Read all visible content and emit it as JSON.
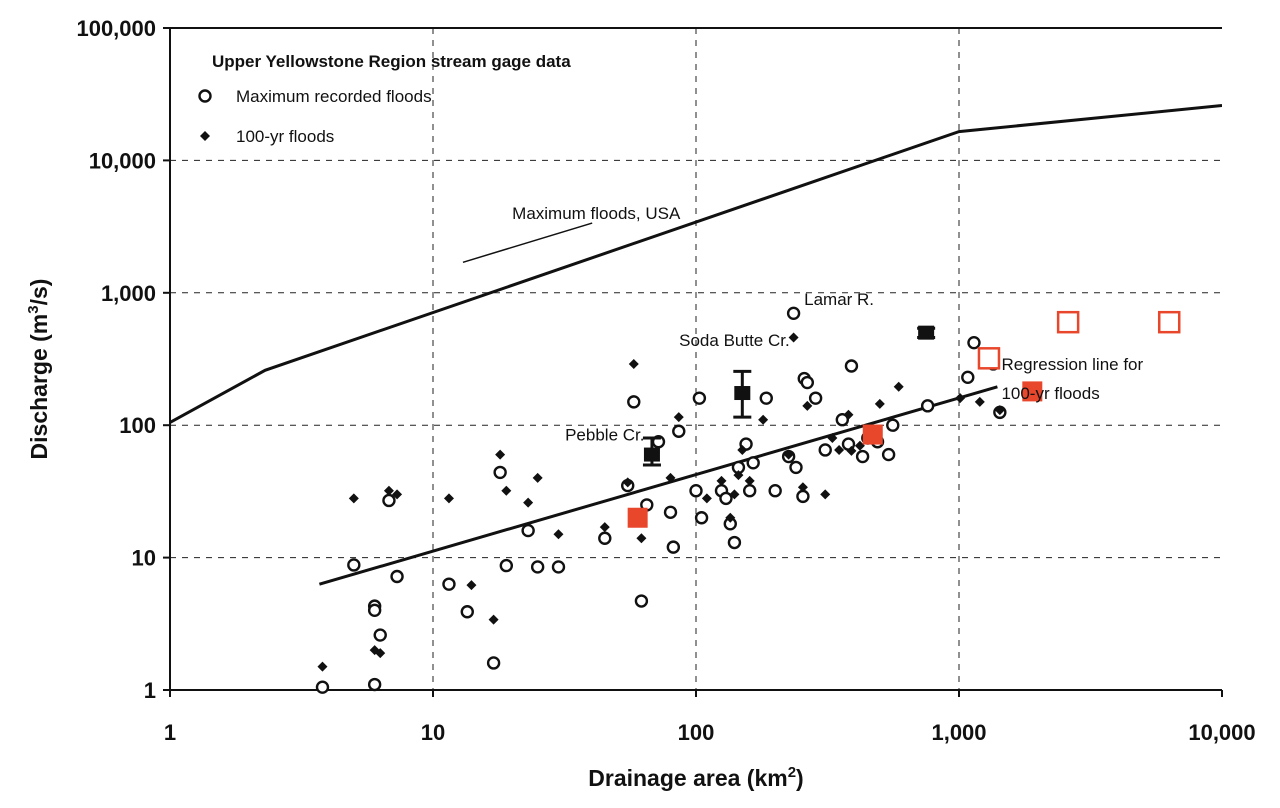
{
  "chart_data": {
    "type": "scatter",
    "xscale": "log",
    "yscale": "log",
    "xlim": [
      1,
      10000
    ],
    "ylim": [
      1,
      100000
    ],
    "grid": true,
    "xlabel": "Drainage area (km",
    "xlabel_sup": "2",
    "xlabel_end": ")",
    "ylabel": "Discharge (m",
    "ylabel_sup": "3",
    "ylabel_end": "/s)",
    "x_ticks": [
      {
        "value": 1,
        "label": "1"
      },
      {
        "value": 10,
        "label": "10"
      },
      {
        "value": 100,
        "label": "100"
      },
      {
        "value": 1000,
        "label": "1,000"
      },
      {
        "value": 10000,
        "label": "10,000"
      }
    ],
    "y_ticks": [
      {
        "value": 1,
        "label": "1"
      },
      {
        "value": 10,
        "label": "10"
      },
      {
        "value": 100,
        "label": "100"
      },
      {
        "value": 1000,
        "label": "1,000"
      },
      {
        "value": 10000,
        "label": "10,000"
      },
      {
        "value": 100000,
        "label": "100,000"
      }
    ],
    "legend": {
      "title": "Upper Yellowstone Region stream gage data",
      "placement": "top-left",
      "entries": [
        {
          "label": "Maximum recorded floods",
          "marker": "open-circle"
        },
        {
          "label": "100-yr floods",
          "marker": "filled-diamond"
        }
      ]
    },
    "series": [
      {
        "name": "Maximum recorded floods",
        "marker": "open-circle",
        "points": [
          [
            3.8,
            1.05
          ],
          [
            5,
            8.8
          ],
          [
            6,
            4.3
          ],
          [
            6,
            4
          ],
          [
            6,
            1.1
          ],
          [
            6.3,
            2.6
          ],
          [
            6.8,
            27
          ],
          [
            7.3,
            7.2
          ],
          [
            11.5,
            6.3
          ],
          [
            13.5,
            3.9
          ],
          [
            17,
            1.6
          ],
          [
            18,
            44
          ],
          [
            19,
            8.7
          ],
          [
            23,
            16
          ],
          [
            25,
            8.5
          ],
          [
            30,
            8.5
          ],
          [
            45,
            14
          ],
          [
            55,
            35
          ],
          [
            58,
            150
          ],
          [
            62,
            4.7
          ],
          [
            65,
            25
          ],
          [
            72,
            75
          ],
          [
            80,
            22
          ],
          [
            82,
            12
          ],
          [
            86,
            90
          ],
          [
            100,
            32
          ],
          [
            103,
            160
          ],
          [
            105,
            20
          ],
          [
            125,
            32
          ],
          [
            130,
            28
          ],
          [
            135,
            18
          ],
          [
            140,
            13
          ],
          [
            145,
            48
          ],
          [
            155,
            72
          ],
          [
            160,
            32
          ],
          [
            165,
            52
          ],
          [
            185,
            160
          ],
          [
            200,
            32
          ],
          [
            225,
            58
          ],
          [
            235,
            700
          ],
          [
            240,
            48
          ],
          [
            255,
            29
          ],
          [
            258,
            225
          ],
          [
            265,
            210
          ],
          [
            285,
            160
          ],
          [
            310,
            65
          ],
          [
            360,
            110
          ],
          [
            380,
            72
          ],
          [
            390,
            280
          ],
          [
            430,
            58
          ],
          [
            450,
            80
          ],
          [
            490,
            75
          ],
          [
            540,
            60
          ],
          [
            560,
            100
          ],
          [
            760,
            140
          ],
          [
            1080,
            230
          ],
          [
            1140,
            420
          ],
          [
            1350,
            290
          ],
          [
            1430,
            125
          ]
        ]
      },
      {
        "name": "100-yr floods",
        "marker": "filled-diamond",
        "points": [
          [
            3.8,
            1.5
          ],
          [
            5,
            28
          ],
          [
            6,
            2
          ],
          [
            6.3,
            1.9
          ],
          [
            6.8,
            32
          ],
          [
            7.3,
            30
          ],
          [
            11.5,
            28
          ],
          [
            14,
            6.2
          ],
          [
            17,
            3.4
          ],
          [
            18,
            60
          ],
          [
            19,
            32
          ],
          [
            23,
            26
          ],
          [
            25,
            40
          ],
          [
            30,
            15
          ],
          [
            45,
            17
          ],
          [
            55,
            37
          ],
          [
            58,
            290
          ],
          [
            62,
            14
          ],
          [
            80,
            40
          ],
          [
            86,
            115
          ],
          [
            110,
            28
          ],
          [
            125,
            38
          ],
          [
            135,
            20
          ],
          [
            140,
            30
          ],
          [
            145,
            42
          ],
          [
            150,
            65
          ],
          [
            160,
            38
          ],
          [
            180,
            110
          ],
          [
            225,
            60
          ],
          [
            235,
            460
          ],
          [
            255,
            34
          ],
          [
            265,
            140
          ],
          [
            310,
            30
          ],
          [
            330,
            80
          ],
          [
            350,
            65
          ],
          [
            380,
            120
          ],
          [
            390,
            64
          ],
          [
            420,
            70
          ],
          [
            500,
            145
          ],
          [
            590,
            195
          ],
          [
            1010,
            160
          ],
          [
            1200,
            150
          ],
          [
            1430,
            130
          ]
        ]
      },
      {
        "name": "",
        "marker": "filled-square-red",
        "points": [
          [
            60,
            20
          ],
          [
            470,
            85
          ],
          [
            1900,
            180
          ]
        ]
      },
      {
        "name": "",
        "marker": "open-square-red",
        "points": [
          [
            1300,
            320
          ],
          [
            2600,
            600
          ],
          [
            6300,
            600
          ]
        ]
      },
      {
        "name": "",
        "marker": "error-bar",
        "points": [
          {
            "x": 68,
            "y": 60,
            "low": 50,
            "high": 80
          },
          {
            "x": 150,
            "y": 175,
            "low": 115,
            "high": 255
          },
          {
            "x": 750,
            "y": 500,
            "low": 460,
            "high": 540
          }
        ]
      }
    ],
    "lines": [
      {
        "label": "Maximum floods, USA",
        "points": [
          [
            1,
            105
          ],
          [
            2.3,
            260
          ],
          [
            1000,
            16500
          ],
          [
            10000,
            26000
          ]
        ]
      },
      {
        "label": "Regression line for 100-yr floods",
        "points": [
          [
            3.7,
            6.3
          ],
          [
            1400,
            195
          ]
        ]
      }
    ],
    "annotations": [
      {
        "text": "Maximum floods, USA",
        "x": 20,
        "y": 4000,
        "anchor": "start",
        "leader_to": [
          13,
          1700
        ]
      },
      {
        "text": "Lamar R.",
        "x": 350,
        "y": 900,
        "anchor": "middle"
      },
      {
        "text": "Soda Butte Cr.",
        "x": 140,
        "y": 440,
        "anchor": "middle"
      },
      {
        "text": "Pebble Cr.",
        "x": 45,
        "y": 85,
        "anchor": "middle"
      },
      {
        "text": "Regression line for",
        "x": 1450,
        "y": 290,
        "anchor": "start"
      },
      {
        "text": "100-yr floods",
        "x": 1450,
        "y": 175,
        "anchor": "start"
      }
    ],
    "colors": {
      "red": "#e8472c",
      "ink": "#111111"
    }
  }
}
